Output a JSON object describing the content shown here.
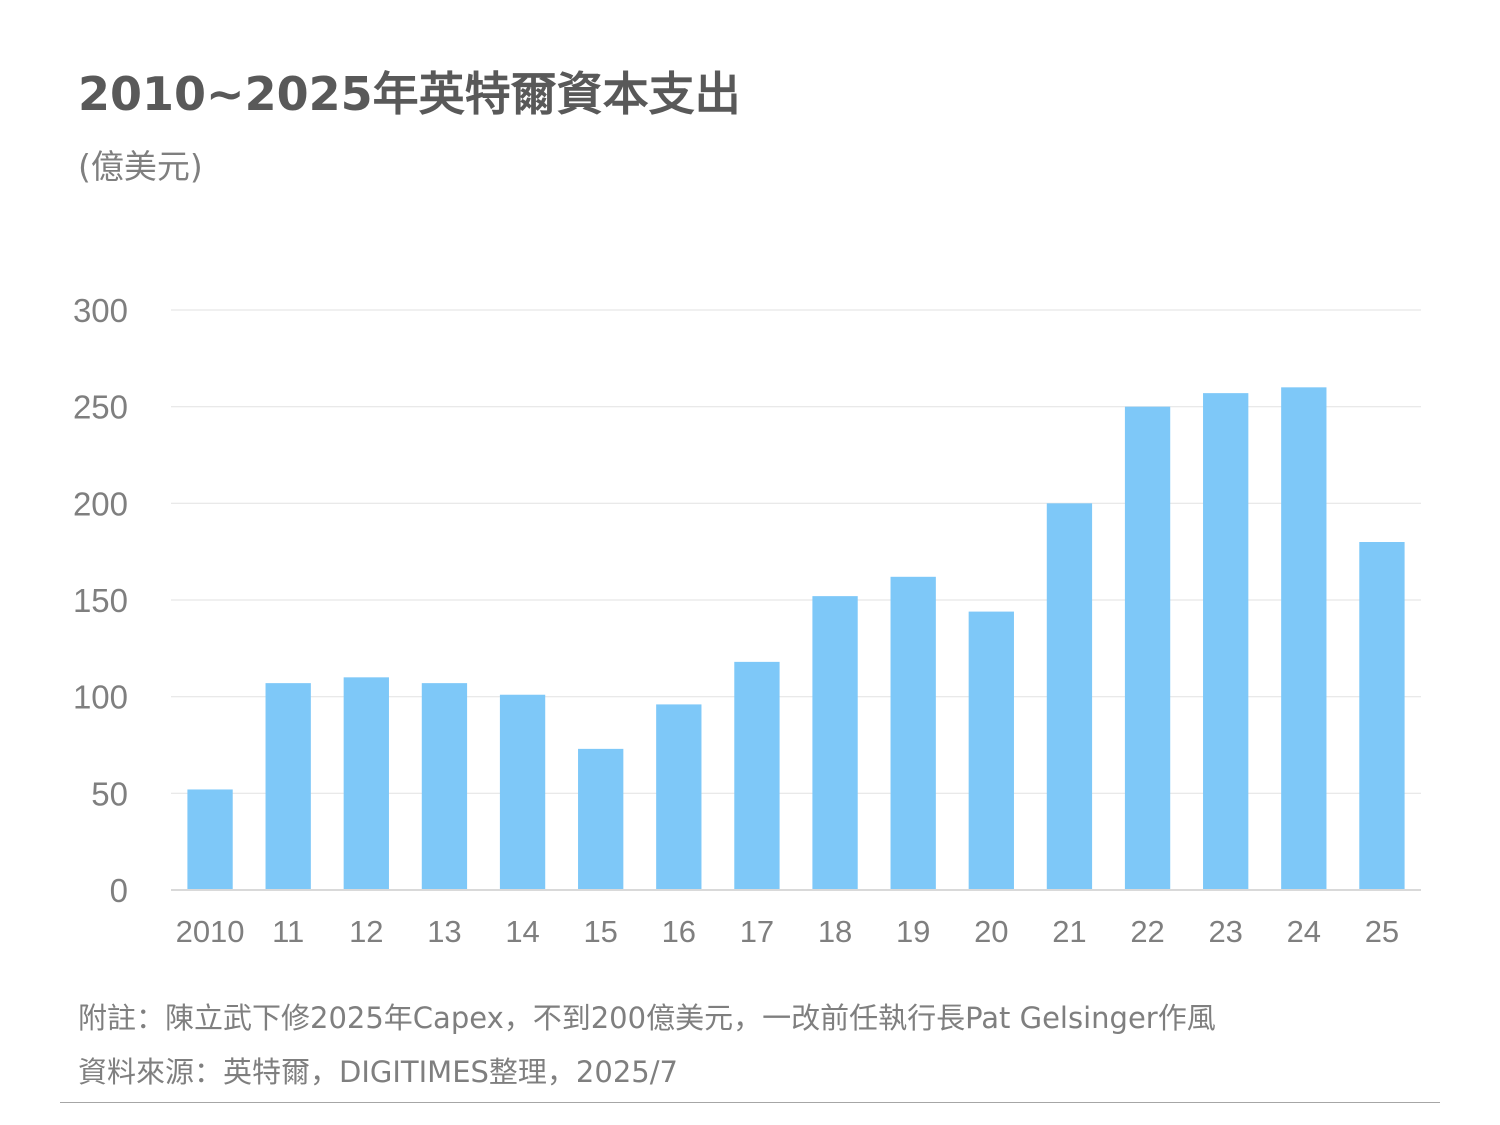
{
  "title": "2010~2025年英特爾資本支出",
  "unit": "(億美元)",
  "chart_data": {
    "type": "bar",
    "categories": [
      "2010",
      "11",
      "12",
      "13",
      "14",
      "15",
      "16",
      "17",
      "18",
      "19",
      "20",
      "21",
      "22",
      "23",
      "24",
      "25"
    ],
    "series": [
      {
        "values": [
          52,
          107,
          110,
          107,
          101,
          73,
          96,
          118,
          152,
          162,
          144,
          200,
          250,
          257,
          260,
          180
        ]
      }
    ],
    "ylim": [
      0,
      300
    ],
    "yticks": [
      0,
      50,
      100,
      150,
      200,
      250,
      300
    ],
    "grid": true,
    "legend": "none",
    "bar_color": "#7ec8f8"
  },
  "notes": {
    "note": "附註：陳立武下修2025年Capex，不到200億美元，一改前任執行長Pat Gelsinger作風",
    "source": "資料來源：英特爾，DIGITIMES整理，2025/7"
  }
}
